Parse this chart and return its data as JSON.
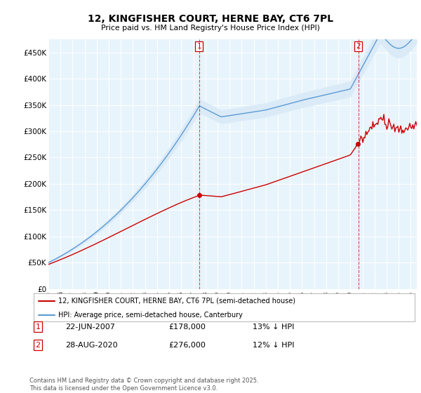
{
  "title": "12, KINGFISHER COURT, HERNE BAY, CT6 7PL",
  "subtitle": "Price paid vs. HM Land Registry's House Price Index (HPI)",
  "legend_line1": "12, KINGFISHER COURT, HERNE BAY, CT6 7PL (semi-detached house)",
  "legend_line2": "HPI: Average price, semi-detached house, Canterbury",
  "sale1_date": "22-JUN-2007",
  "sale1_price": "£178,000",
  "sale1_hpi": "13% ↓ HPI",
  "sale2_date": "28-AUG-2020",
  "sale2_price": "£276,000",
  "sale2_hpi": "12% ↓ HPI",
  "footnote": "Contains HM Land Registry data © Crown copyright and database right 2025.\nThis data is licensed under the Open Government Licence v3.0.",
  "property_color": "#cc0000",
  "hpi_color": "#5b9bd5",
  "hpi_fill_color": "#daeaf7",
  "background_color": "#ffffff",
  "grid_color": "#cccccc",
  "ylim": [
    0,
    475000
  ],
  "yticks": [
    0,
    50000,
    100000,
    150000,
    200000,
    250000,
    300000,
    350000,
    400000,
    450000
  ],
  "ytick_labels": [
    "£0",
    "£50K",
    "£100K",
    "£150K",
    "£200K",
    "£250K",
    "£300K",
    "£350K",
    "£400K",
    "£450K"
  ],
  "sale1_year": 2007.47,
  "sale2_year": 2020.65,
  "sale1_price_val": 178000,
  "sale2_price_val": 276000,
  "xlim_left": 1995.0,
  "xlim_right": 2025.5
}
